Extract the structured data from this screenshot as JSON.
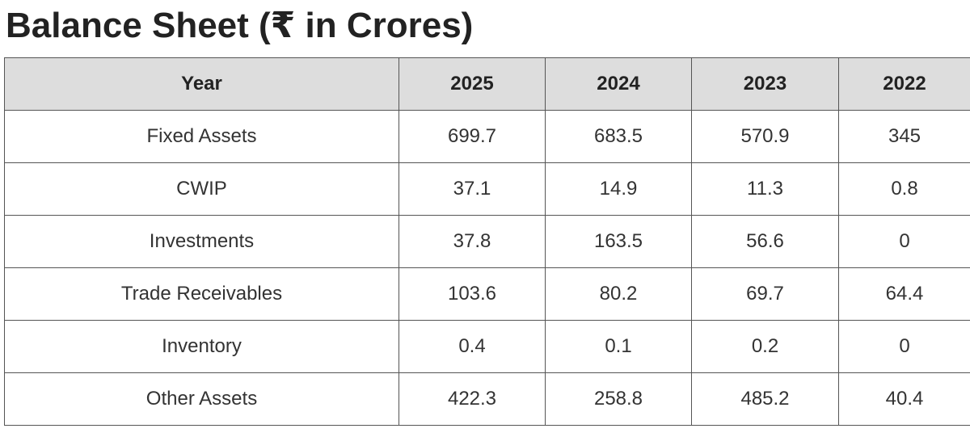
{
  "title": "Balance Sheet (₹ in Crores)",
  "table": {
    "headers": [
      "Year",
      "2025",
      "2024",
      "2023",
      "2022"
    ],
    "rows": [
      [
        "Fixed Assets",
        "699.7",
        "683.5",
        "570.9",
        "345"
      ],
      [
        "CWIP",
        "37.1",
        "14.9",
        "11.3",
        "0.8"
      ],
      [
        "Investments",
        "37.8",
        "163.5",
        "56.6",
        "0"
      ],
      [
        "Trade Receivables",
        "103.6",
        "80.2",
        "69.7",
        "64.4"
      ],
      [
        "Inventory",
        "0.4",
        "0.1",
        "0.2",
        "0"
      ],
      [
        "Other Assets",
        "422.3",
        "258.8",
        "485.2",
        "40.4"
      ]
    ]
  },
  "colors": {
    "header_bg": "#dddddd",
    "border": "#555555",
    "text": "#222222"
  }
}
